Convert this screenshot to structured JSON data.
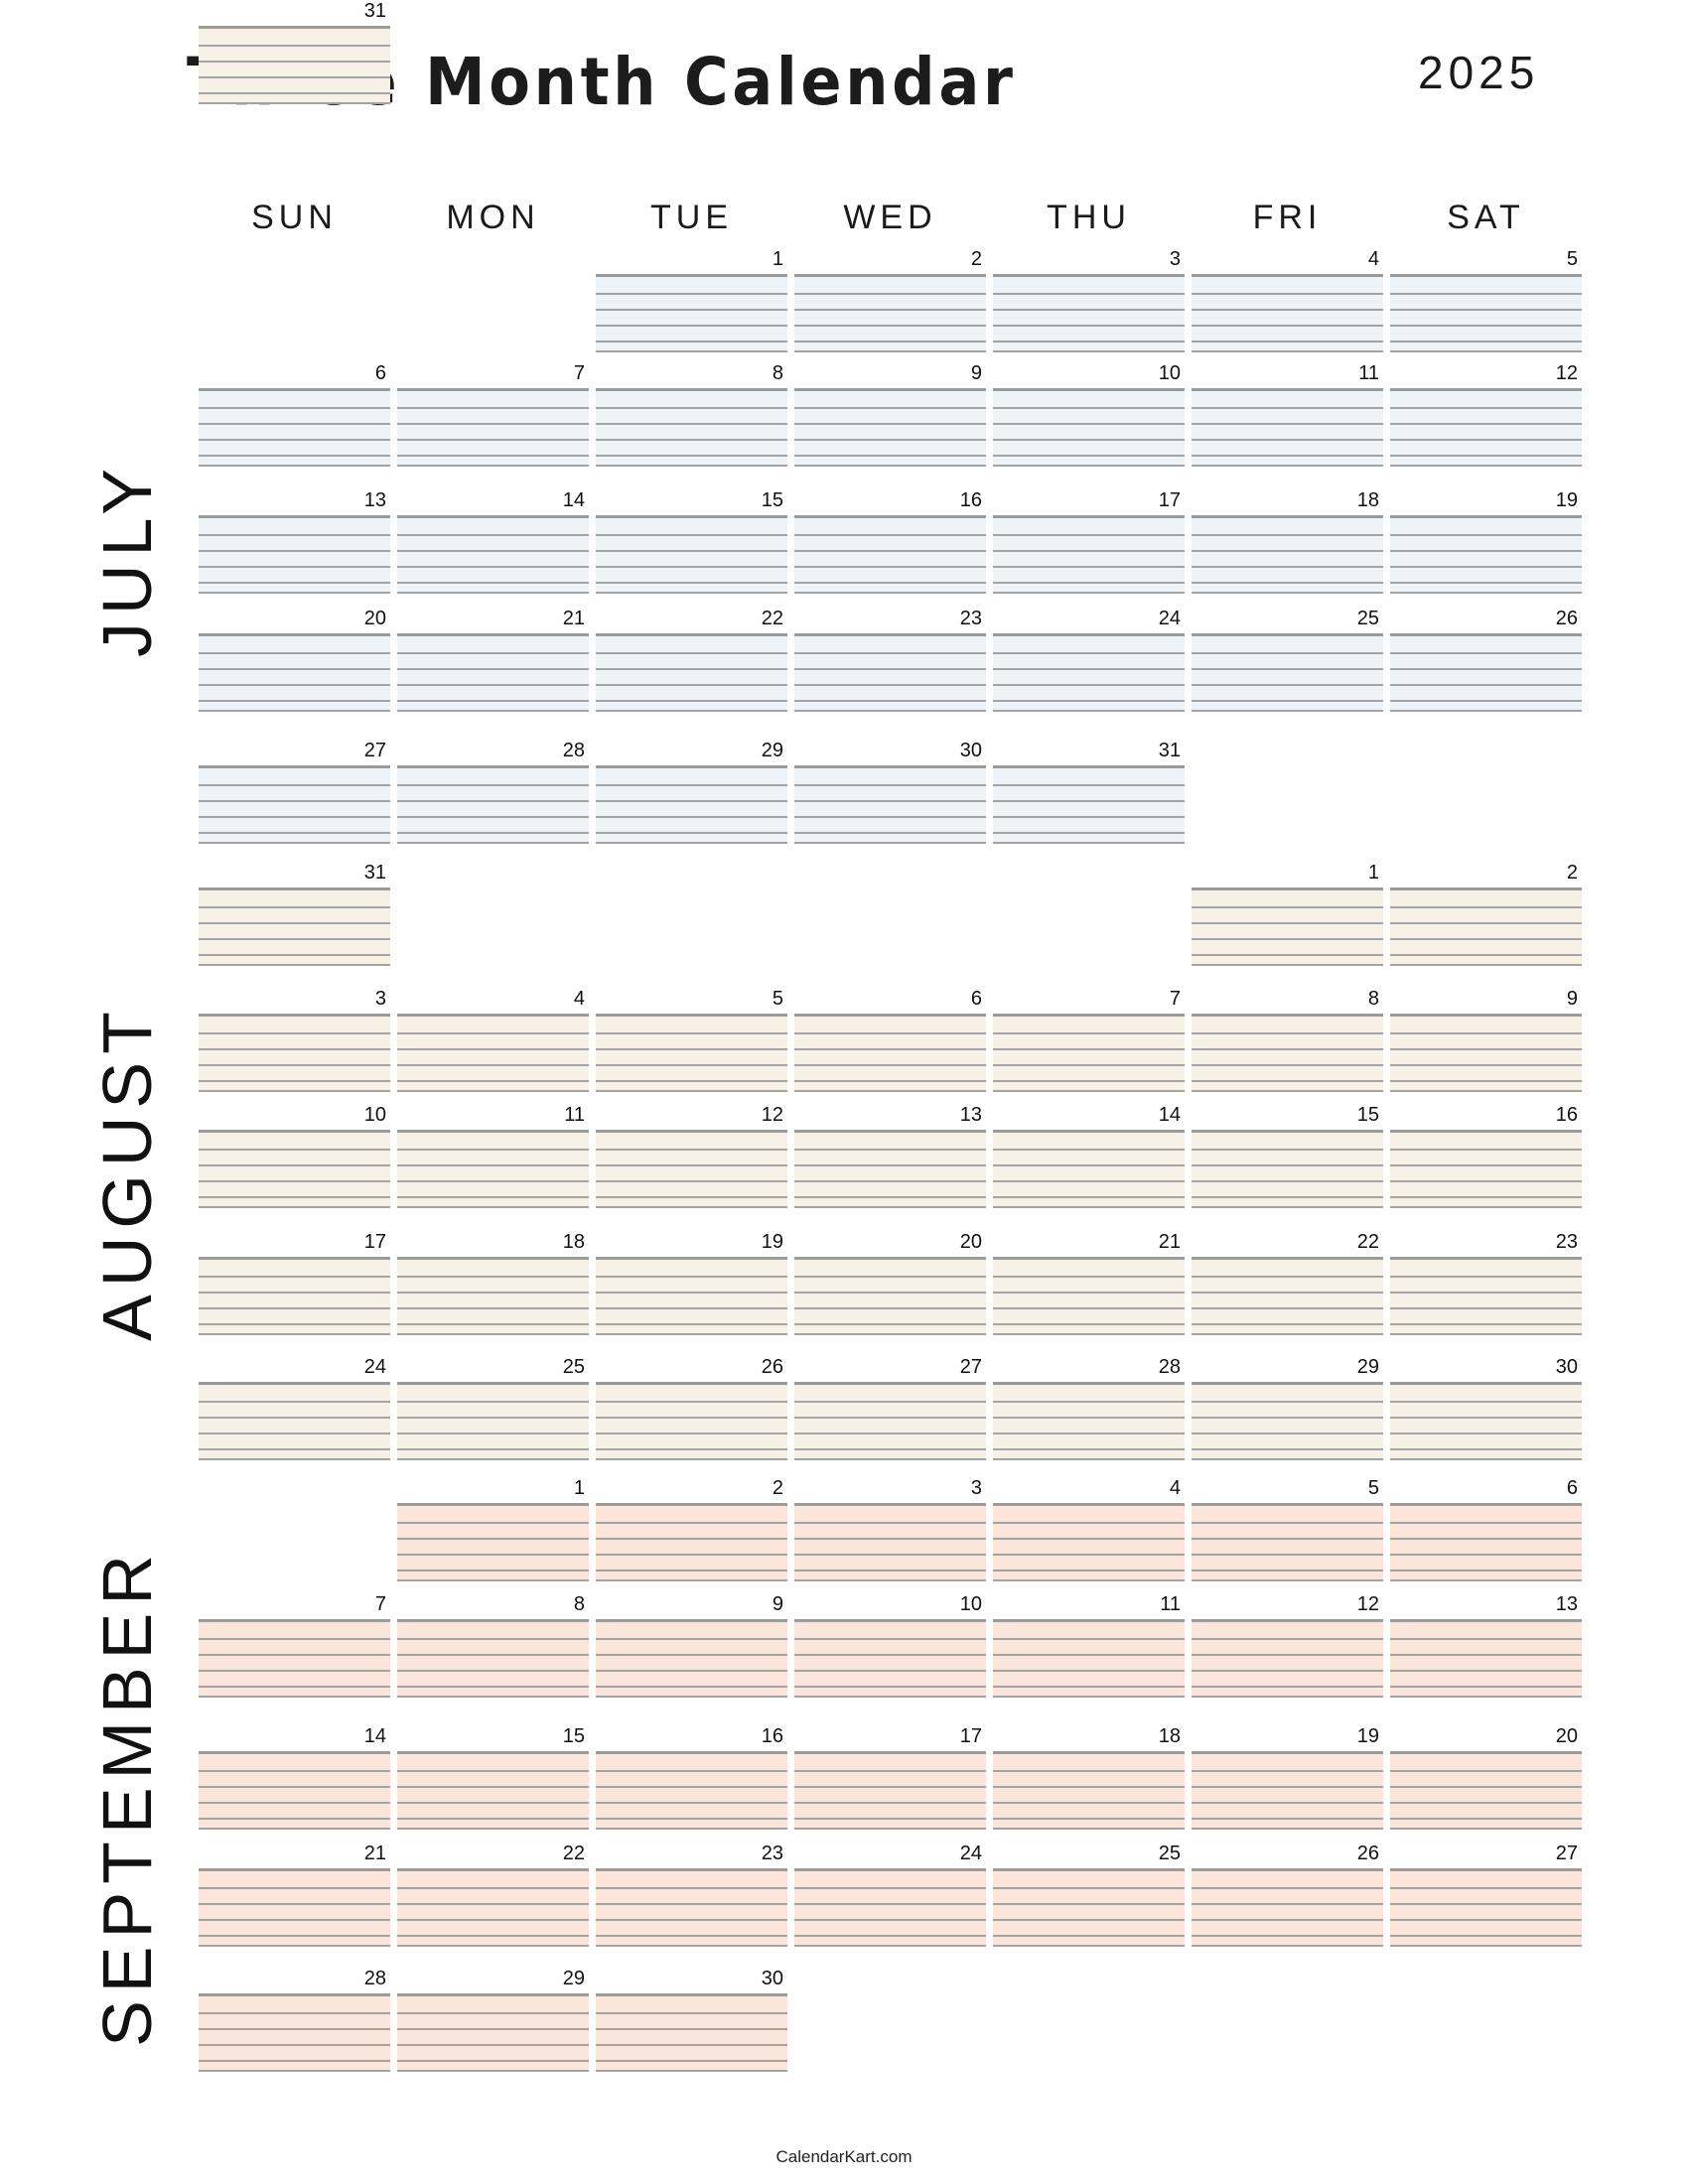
{
  "header": {
    "title": "Three Month Calendar",
    "year": "2025"
  },
  "weekdays": [
    "SUN",
    "MON",
    "TUE",
    "WED",
    "THU",
    "FRI",
    "SAT"
  ],
  "months": [
    {
      "name": "JULY",
      "fill": "#eef3f8",
      "first_weekday": 2,
      "days": 31
    },
    {
      "name": "AUGUST",
      "fill": "#f6f1e4",
      "first_weekday": 5,
      "days": 31,
      "extra_day": "31"
    },
    {
      "name": "SEPTEMBER",
      "fill": "#fce5da",
      "first_weekday": 1,
      "days": 30
    }
  ],
  "footer": "CalendarKart.com"
}
